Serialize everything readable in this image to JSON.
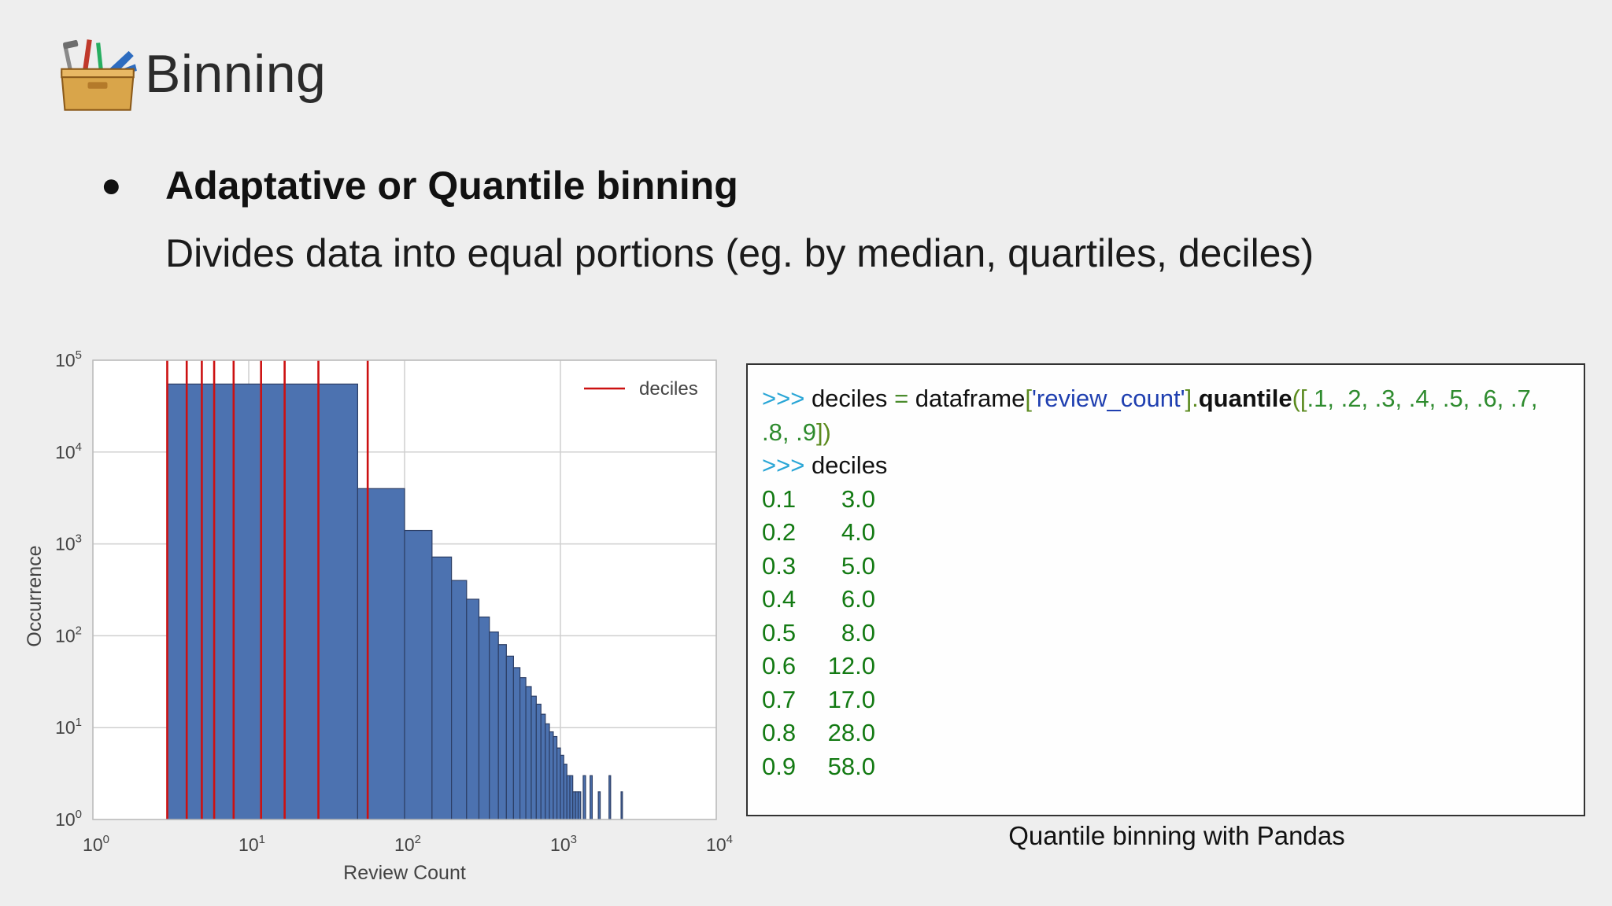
{
  "slide": {
    "title": "Binning",
    "bullet_symbol": "●",
    "heading": "Adaptative or Quantile binning",
    "subtext": "Divides data into equal portions (eg. by median, quartiles, deciles)",
    "caption": "Quantile binning with Pandas",
    "logo_icon": "toolbox-icon"
  },
  "code": {
    "prompt": ">>>",
    "line1": {
      "var": "deciles",
      "eq": "=",
      "obj": "dataframe",
      "open_bracket": "[",
      "key": "'review_count'",
      "close_bracket": "].",
      "method": "quantile",
      "args_open": "([",
      "args": ".1, .2, .3, .4, .5, .6, .7,",
      "args_cont": ".8, .9",
      "args_close": "])"
    },
    "line2": "deciles",
    "output": [
      {
        "q": "0.1",
        "v": "3.0"
      },
      {
        "q": "0.2",
        "v": "4.0"
      },
      {
        "q": "0.3",
        "v": "5.0"
      },
      {
        "q": "0.4",
        "v": "6.0"
      },
      {
        "q": "0.5",
        "v": "8.0"
      },
      {
        "q": "0.6",
        "v": "12.0"
      },
      {
        "q": "0.7",
        "v": "17.0"
      },
      {
        "q": "0.8",
        "v": "28.0"
      },
      {
        "q": "0.9",
        "v": "58.0"
      }
    ]
  },
  "chart_data": {
    "type": "bar",
    "xlabel": "Review Count",
    "ylabel": "Occurrence",
    "xscale": "log",
    "yscale": "log",
    "xlim": [
      1,
      10000
    ],
    "ylim": [
      1,
      100000
    ],
    "xticks": [
      {
        "base": "10",
        "exp": "0"
      },
      {
        "base": "10",
        "exp": "1"
      },
      {
        "base": "10",
        "exp": "2"
      },
      {
        "base": "10",
        "exp": "3"
      },
      {
        "base": "10",
        "exp": "4"
      }
    ],
    "yticks": [
      {
        "base": "10",
        "exp": "0"
      },
      {
        "base": "10",
        "exp": "1"
      },
      {
        "base": "10",
        "exp": "2"
      },
      {
        "base": "10",
        "exp": "3"
      },
      {
        "base": "10",
        "exp": "4"
      },
      {
        "base": "10",
        "exp": "5"
      }
    ],
    "grid": true,
    "legend": {
      "label": "deciles",
      "placement": "top-right",
      "color": "#cc1111"
    },
    "bar_color": "#4c72b0",
    "bins": [
      {
        "x0": 3,
        "x1": 50,
        "count": 55000
      },
      {
        "x0": 50,
        "x1": 100,
        "count": 4000
      },
      {
        "x0": 100,
        "x1": 150,
        "count": 1400
      },
      {
        "x0": 150,
        "x1": 200,
        "count": 720
      },
      {
        "x0": 200,
        "x1": 250,
        "count": 400
      },
      {
        "x0": 250,
        "x1": 300,
        "count": 250
      },
      {
        "x0": 300,
        "x1": 350,
        "count": 160
      },
      {
        "x0": 350,
        "x1": 400,
        "count": 110
      },
      {
        "x0": 400,
        "x1": 450,
        "count": 80
      },
      {
        "x0": 450,
        "x1": 500,
        "count": 60
      },
      {
        "x0": 500,
        "x1": 550,
        "count": 45
      },
      {
        "x0": 550,
        "x1": 600,
        "count": 35
      },
      {
        "x0": 600,
        "x1": 650,
        "count": 28
      },
      {
        "x0": 650,
        "x1": 700,
        "count": 22
      },
      {
        "x0": 700,
        "x1": 750,
        "count": 18
      },
      {
        "x0": 750,
        "x1": 800,
        "count": 14
      },
      {
        "x0": 800,
        "x1": 850,
        "count": 11
      },
      {
        "x0": 850,
        "x1": 900,
        "count": 9
      },
      {
        "x0": 900,
        "x1": 950,
        "count": 8
      },
      {
        "x0": 950,
        "x1": 1000,
        "count": 6
      },
      {
        "x0": 1000,
        "x1": 1050,
        "count": 5
      },
      {
        "x0": 1050,
        "x1": 1100,
        "count": 4
      },
      {
        "x0": 1100,
        "x1": 1150,
        "count": 3
      },
      {
        "x0": 1150,
        "x1": 1200,
        "count": 3
      },
      {
        "x0": 1200,
        "x1": 1250,
        "count": 2
      },
      {
        "x0": 1250,
        "x1": 1300,
        "count": 2
      },
      {
        "x0": 1300,
        "x1": 1350,
        "count": 2
      },
      {
        "x0": 1350,
        "x1": 1400,
        "count": 1
      },
      {
        "x0": 1400,
        "x1": 1450,
        "count": 3
      },
      {
        "x0": 1450,
        "x1": 1500,
        "count": 1
      },
      {
        "x0": 1550,
        "x1": 1600,
        "count": 3
      },
      {
        "x0": 1750,
        "x1": 1800,
        "count": 2
      },
      {
        "x0": 2050,
        "x1": 2100,
        "count": 3
      },
      {
        "x0": 2450,
        "x1": 2500,
        "count": 2
      }
    ],
    "deciles": [
      3.0,
      4.0,
      5.0,
      6.0,
      8.0,
      12.0,
      17.0,
      28.0,
      58.0
    ]
  }
}
